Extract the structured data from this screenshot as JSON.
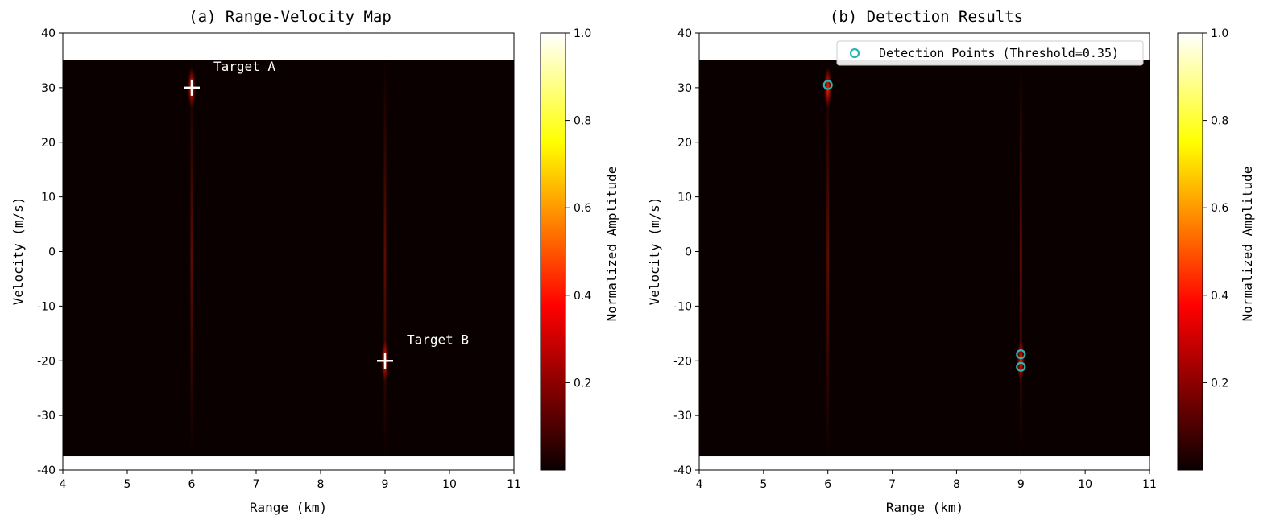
{
  "chart_data": [
    {
      "type": "heatmap",
      "title": "(a) Range-Velocity Map",
      "xlabel": "Range (km)",
      "ylabel": "Velocity (m/s)",
      "xlim": [
        4,
        11
      ],
      "ylim": [
        -40,
        40
      ],
      "data_extent_y": [
        -37.5,
        35
      ],
      "xticks": [
        4,
        5,
        6,
        7,
        8,
        9,
        10,
        11
      ],
      "yticks": [
        40,
        30,
        20,
        10,
        0,
        -10,
        -20,
        -30,
        -40
      ],
      "targets": [
        {
          "label": "Target A",
          "x": 6,
          "y": 30
        },
        {
          "label": "Target B",
          "x": 9,
          "y": -20
        }
      ],
      "colorbar": {
        "label": "Normalized Amplitude",
        "ticks": [
          "0.2",
          "0.4",
          "0.6",
          "0.8",
          "1.0"
        ],
        "tick_values": [
          0.2,
          0.4,
          0.6,
          0.8,
          1.0
        ],
        "range": [
          0,
          1.0
        ],
        "colormap": "hot"
      }
    },
    {
      "type": "scatter",
      "title": "(b) Detection Results",
      "xlabel": "Range (km)",
      "ylabel": "Velocity (m/s)",
      "xlim": [
        4,
        11
      ],
      "ylim": [
        -40,
        40
      ],
      "data_extent_y": [
        -37.5,
        35
      ],
      "xticks": [
        4,
        5,
        6,
        7,
        8,
        9,
        10,
        11
      ],
      "yticks": [
        40,
        30,
        20,
        10,
        0,
        -10,
        -20,
        -30,
        -40
      ],
      "legend": {
        "label": "Detection Points (Threshold=0.35)",
        "position": "top-right"
      },
      "marker_color": "#2ab5b5",
      "points": [
        {
          "x": 6.0,
          "y": 30.5
        },
        {
          "x": 9.0,
          "y": -18.8
        },
        {
          "x": 9.0,
          "y": -21.1
        }
      ],
      "colorbar": {
        "label": "Normalized Amplitude",
        "ticks": [
          "0.2",
          "0.4",
          "0.6",
          "0.8",
          "1.0"
        ],
        "tick_values": [
          0.2,
          0.4,
          0.6,
          0.8,
          1.0
        ],
        "range": [
          0,
          1.0
        ],
        "colormap": "hot"
      }
    }
  ]
}
